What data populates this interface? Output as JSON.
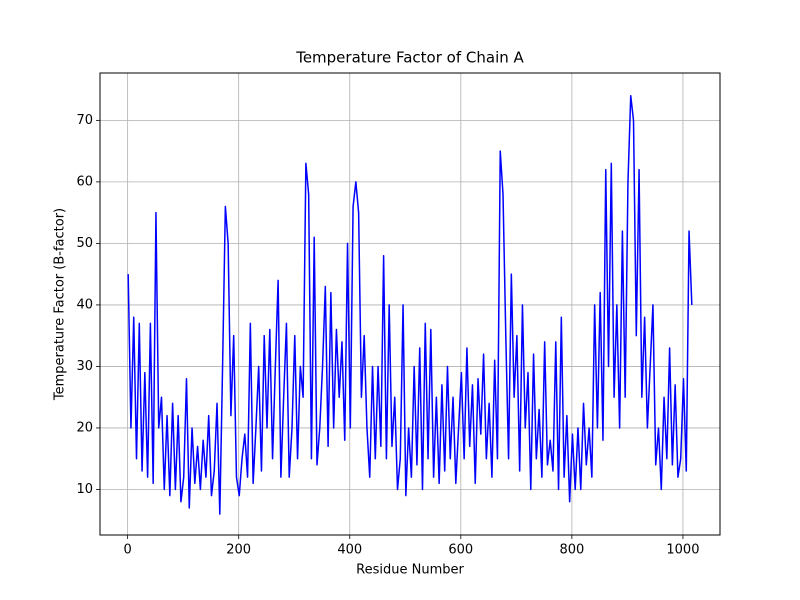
{
  "chart_data": {
    "type": "line",
    "title": "Temperature Factor of Chain A",
    "xlabel": "Residue Number",
    "ylabel": "Temperature Factor (B-factor)",
    "x": [
      1,
      6,
      11,
      16,
      21,
      26,
      31,
      36,
      41,
      46,
      51,
      56,
      61,
      66,
      71,
      76,
      81,
      86,
      91,
      96,
      101,
      106,
      111,
      116,
      121,
      126,
      131,
      136,
      141,
      146,
      151,
      156,
      161,
      166,
      171,
      176,
      181,
      186,
      191,
      196,
      201,
      206,
      211,
      216,
      221,
      226,
      231,
      236,
      241,
      246,
      251,
      256,
      261,
      266,
      271,
      276,
      281,
      286,
      291,
      296,
      301,
      306,
      311,
      316,
      321,
      326,
      331,
      336,
      341,
      346,
      351,
      356,
      361,
      366,
      371,
      376,
      381,
      386,
      391,
      396,
      401,
      406,
      411,
      416,
      421,
      426,
      431,
      436,
      441,
      446,
      451,
      456,
      461,
      466,
      471,
      476,
      481,
      486,
      491,
      496,
      501,
      506,
      511,
      516,
      521,
      526,
      531,
      536,
      541,
      546,
      551,
      556,
      561,
      566,
      571,
      576,
      581,
      586,
      591,
      596,
      601,
      606,
      611,
      616,
      621,
      626,
      631,
      636,
      641,
      646,
      651,
      656,
      661,
      666,
      671,
      676,
      681,
      686,
      691,
      696,
      701,
      706,
      711,
      716,
      721,
      726,
      731,
      736,
      741,
      746,
      751,
      756,
      761,
      766,
      771,
      776,
      781,
      786,
      791,
      796,
      801,
      806,
      811,
      816,
      821,
      826,
      831,
      836,
      841,
      846,
      851,
      856,
      861,
      866,
      871,
      876,
      881,
      886,
      891,
      896,
      901,
      906,
      911,
      916,
      921,
      926,
      931,
      936,
      941,
      946,
      951,
      956,
      961,
      966,
      971,
      976,
      981,
      986,
      991,
      996,
      1001,
      1006,
      1011,
      1016
    ],
    "series": [
      {
        "name": "Chain A",
        "color": "#0000ff",
        "values": [
          45,
          20,
          38,
          15,
          37,
          13,
          29,
          12,
          37,
          11,
          55,
          20,
          25,
          10,
          22,
          9,
          24,
          10,
          22,
          8,
          12,
          28,
          7,
          20,
          11,
          17,
          10,
          18,
          12,
          22,
          9,
          13,
          24,
          6,
          30,
          56,
          50,
          22,
          35,
          12,
          9,
          15,
          19,
          12,
          37,
          11,
          20,
          30,
          13,
          35,
          20,
          36,
          15,
          30,
          44,
          12,
          25,
          37,
          12,
          20,
          35,
          15,
          30,
          25,
          63,
          58,
          15,
          51,
          14,
          20,
          30,
          43,
          17,
          42,
          20,
          36,
          25,
          34,
          18,
          50,
          20,
          56,
          60,
          55,
          25,
          35,
          20,
          12,
          30,
          15,
          30,
          17,
          48,
          15,
          40,
          17,
          25,
          10,
          15,
          40,
          9,
          20,
          12,
          30,
          14,
          33,
          10,
          37,
          15,
          36,
          12,
          25,
          11,
          27,
          13,
          30,
          15,
          25,
          11,
          20,
          29,
          15,
          33,
          17,
          27,
          11,
          28,
          19,
          32,
          15,
          24,
          12,
          31,
          15,
          65,
          58,
          35,
          15,
          45,
          25,
          35,
          13,
          40,
          20,
          29,
          10,
          32,
          15,
          23,
          12,
          34,
          14,
          18,
          13,
          34,
          10,
          38,
          12,
          22,
          8,
          19,
          10,
          20,
          10,
          24,
          14,
          20,
          12,
          40,
          20,
          42,
          18,
          62,
          30,
          63,
          25,
          40,
          20,
          52,
          25,
          60,
          74,
          70,
          35,
          62,
          25,
          38,
          20,
          30,
          40,
          14,
          20,
          10,
          25,
          15,
          33,
          14,
          27,
          12,
          15,
          28,
          13,
          52,
          40
        ]
      }
    ],
    "xlim": [
      -49.75,
      1066.75
    ],
    "xticks": [
      0,
      200,
      400,
      600,
      800,
      1000
    ],
    "ylim": [
      2.6,
      77.7
    ],
    "yticks": [
      10,
      20,
      30,
      40,
      50,
      60,
      70
    ],
    "grid": true
  }
}
